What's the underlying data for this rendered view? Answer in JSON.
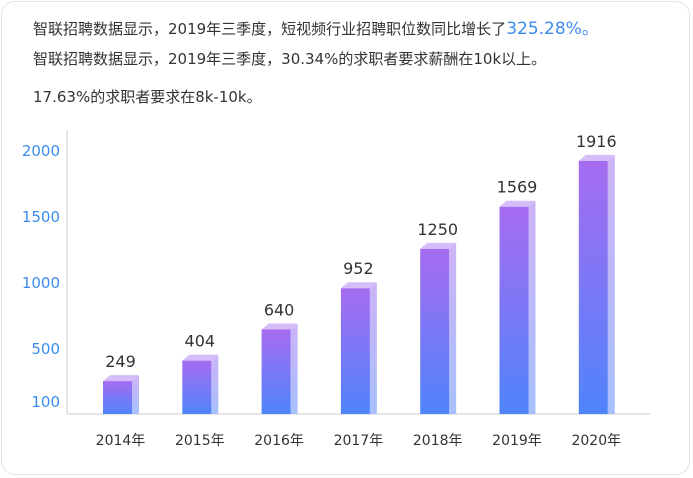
{
  "text": {
    "line1_prefix": "智联招聘数据显示，2019年三季度，短视频行业招聘职位数同比增长了",
    "line1_highlight": "325.28%。",
    "line2": "智联招聘数据显示，2019年三季度，30.34%的求职者要求薪酬在10k以上。",
    "line3": "17.63%的求职者要求在8k-10k。"
  },
  "colors": {
    "highlight": "#3b8cf0",
    "axis_label": "#3b8cf0",
    "bar_top": "#a66cf0",
    "bar_bottom": "#4f84fb"
  },
  "chart_data": {
    "type": "bar",
    "categories": [
      "2014年",
      "2015年",
      "2016年",
      "2017年",
      "2018年",
      "2019年",
      "2020年"
    ],
    "values": [
      249,
      404,
      640,
      952,
      1250,
      1569,
      1916
    ],
    "yticks": [
      100,
      500,
      1000,
      1500,
      2000
    ],
    "ylim": [
      0,
      2150
    ],
    "title": "",
    "xlabel": "",
    "ylabel": "",
    "grid": false,
    "data_labels": true
  }
}
